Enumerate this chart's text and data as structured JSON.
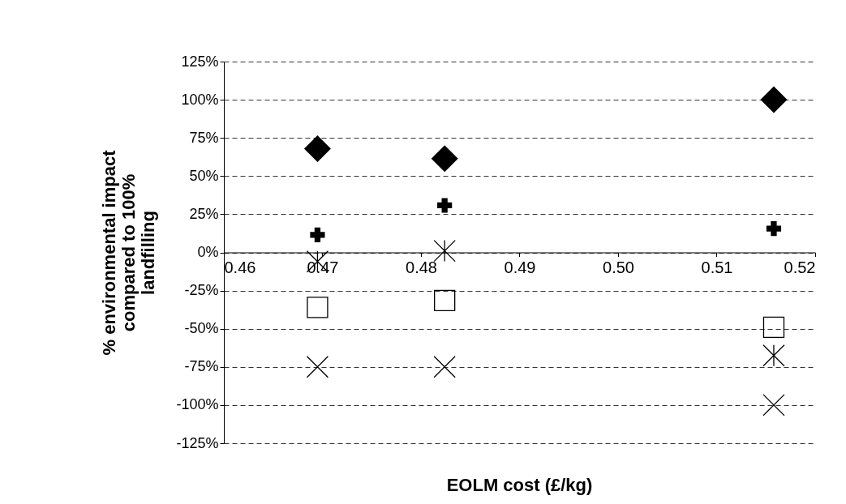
{
  "chart_data": {
    "type": "scatter",
    "xlabel": "EOLM cost (£/kg)",
    "ylabel": "% environmental impact\ncompared to 100%\nlandfilling",
    "series": [
      {
        "color": "#000000",
        "marker": "diamond",
        "x": [
          0.4695,
          0.4824,
          0.5158
        ],
        "values": [
          68,
          61.5,
          100
        ]
      },
      {
        "color": "#000000",
        "marker": "cross",
        "x": [
          0.4695,
          0.4824,
          0.5158
        ],
        "values": [
          11.5,
          30.8,
          15.6
        ]
      },
      {
        "color": "#000000",
        "marker": "star",
        "x": [
          0.4695,
          0.4824,
          0.5158
        ],
        "values": [
          -6,
          1,
          -67.5
        ]
      },
      {
        "color": "#000000",
        "marker": "square",
        "x": [
          0.4695,
          0.4824,
          0.5158
        ],
        "values": [
          -36,
          -31.5,
          -49
        ]
      },
      {
        "color": "#000000",
        "marker": "x",
        "x": [
          0.4695,
          0.4824,
          0.5158
        ],
        "values": [
          -75,
          -75,
          -100
        ]
      }
    ],
    "xlim": [
      0.46,
      0.52
    ],
    "xticks": [
      0.46,
      0.47,
      0.48,
      0.49,
      {
        "value": 0.5,
        "label": "0.50"
      },
      0.51,
      0.52
    ],
    "ylim": [
      -125,
      125
    ],
    "yticks": [
      {
        "value": -125,
        "label": "-125%"
      },
      {
        "value": -100,
        "label": "-100%"
      },
      {
        "value": -75,
        "label": "-75%"
      },
      {
        "value": -50,
        "label": "-50%"
      },
      {
        "value": -25,
        "label": "-25%"
      },
      {
        "value": 0,
        "label": "0%"
      },
      {
        "value": 25,
        "label": "25%"
      },
      {
        "value": 50,
        "label": "50%"
      },
      {
        "value": 75,
        "label": "75%"
      },
      {
        "value": 100,
        "label": "100%"
      },
      {
        "value": 125,
        "label": "125%"
      }
    ],
    "grid": "y"
  }
}
